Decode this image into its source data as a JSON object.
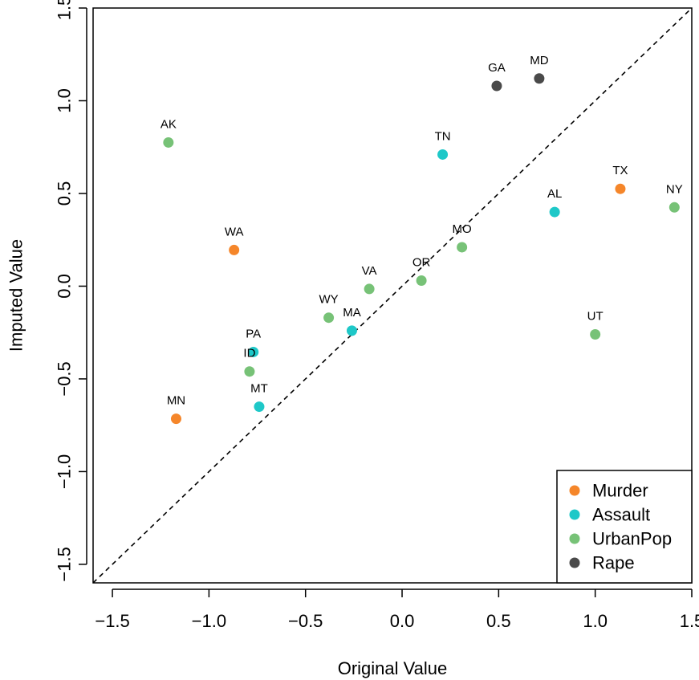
{
  "chart_data": {
    "type": "scatter",
    "title": "",
    "xlabel": "Original Value",
    "ylabel": "Imputed Value",
    "xlim": [
      -1.6,
      1.5
    ],
    "ylim": [
      -1.6,
      1.5
    ],
    "x_ticks": [
      {
        "value": -1.5,
        "label": "−1.5"
      },
      {
        "value": -1.0,
        "label": "−1.0"
      },
      {
        "value": -0.5,
        "label": "−0.5"
      },
      {
        "value": 0.0,
        "label": "0.0"
      },
      {
        "value": 0.5,
        "label": "0.5"
      },
      {
        "value": 1.0,
        "label": "1.0"
      },
      {
        "value": 1.5,
        "label": "1.5"
      }
    ],
    "y_ticks": [
      {
        "value": -1.5,
        "label": "−1.5"
      },
      {
        "value": -1.0,
        "label": "−1.0"
      },
      {
        "value": -0.5,
        "label": "−0.5"
      },
      {
        "value": 0.0,
        "label": "0.0"
      },
      {
        "value": 0.5,
        "label": "0.5"
      },
      {
        "value": 1.0,
        "label": "1.0"
      },
      {
        "value": 1.5,
        "label": "1.5"
      }
    ],
    "grid": false,
    "reference_line": {
      "type": "identity",
      "style": "dashed"
    },
    "legend_position": "bottom-right",
    "series": [
      {
        "name": "Murder",
        "color": "#f5862a",
        "points": [
          {
            "label": "TX",
            "x": 1.13,
            "y": 0.525
          },
          {
            "label": "WA",
            "x": -0.87,
            "y": 0.195
          },
          {
            "label": "MN",
            "x": -1.17,
            "y": -0.715
          }
        ]
      },
      {
        "name": "Assault",
        "color": "#1ec8c8",
        "points": [
          {
            "label": "TN",
            "x": 0.21,
            "y": 0.71
          },
          {
            "label": "AL",
            "x": 0.79,
            "y": 0.4
          },
          {
            "label": "MA",
            "x": -0.26,
            "y": -0.24
          },
          {
            "label": "PA",
            "x": -0.77,
            "y": -0.355
          },
          {
            "label": "MT",
            "x": -0.74,
            "y": -0.65
          }
        ]
      },
      {
        "name": "UrbanPop",
        "color": "#77c277",
        "points": [
          {
            "label": "AK",
            "x": -1.21,
            "y": 0.775
          },
          {
            "label": "NY",
            "x": 1.41,
            "y": 0.425
          },
          {
            "label": "MO",
            "x": 0.31,
            "y": 0.21
          },
          {
            "label": "OR",
            "x": 0.1,
            "y": 0.03
          },
          {
            "label": "VA",
            "x": -0.17,
            "y": -0.015
          },
          {
            "label": "WY",
            "x": -0.38,
            "y": -0.17
          },
          {
            "label": "UT",
            "x": 1.0,
            "y": -0.26
          },
          {
            "label": "ID",
            "x": -0.79,
            "y": -0.46
          }
        ]
      },
      {
        "name": "Rape",
        "color": "#4a4a4a",
        "points": [
          {
            "label": "GA",
            "x": 0.49,
            "y": 1.08
          },
          {
            "label": "MD",
            "x": 0.71,
            "y": 1.12
          }
        ]
      }
    ]
  }
}
